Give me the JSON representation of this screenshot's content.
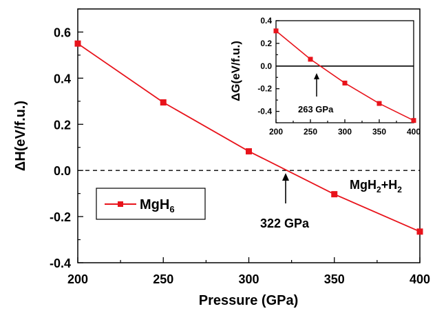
{
  "colors": {
    "series": "#e8131b",
    "axis": "#000000",
    "background": "#ffffff"
  },
  "chart_data": [
    {
      "type": "line",
      "xlabel": "Pressure (GPa)",
      "ylabel": "ΔH(eV/f.u.)",
      "xlim": [
        200,
        400
      ],
      "ylim": [
        -0.4,
        0.7
      ],
      "xticks": [
        "200",
        "250",
        "300",
        "350",
        "400"
      ],
      "yticks": [
        "-0.4",
        "-0.2",
        "0.0",
        "0.2",
        "0.4",
        "0.6"
      ],
      "series": [
        {
          "name": "MgH6",
          "marker": "square",
          "x": [
            200,
            250,
            300,
            350,
            400
          ],
          "y": [
            0.55,
            0.295,
            0.083,
            -0.103,
            -0.265
          ]
        }
      ],
      "reference_line": {
        "y": 0.0,
        "style": "dashed",
        "label": "MgH2+H2"
      },
      "annotation": {
        "text": "322 GPa",
        "x": 322
      },
      "legend": {
        "placement": "center-left",
        "entries": [
          "MgH6"
        ]
      }
    },
    {
      "type": "line",
      "xlabel": "",
      "ylabel": "ΔG(eV/f.u.)",
      "xlim": [
        200,
        400
      ],
      "ylim": [
        -0.5,
        0.4
      ],
      "xticks": [
        "200",
        "250",
        "300",
        "350",
        "400"
      ],
      "yticks": [
        "-0.4",
        "-0.2",
        "0.0",
        "0.2",
        "0.4"
      ],
      "series": [
        {
          "name": "",
          "marker": "square",
          "x": [
            200,
            250,
            300,
            350,
            400
          ],
          "y": [
            0.31,
            0.06,
            -0.15,
            -0.33,
            -0.48
          ]
        }
      ],
      "reference_line": {
        "y": 0.0,
        "style": "solid"
      },
      "annotation": {
        "text": "263 GPa",
        "x": 263
      }
    }
  ],
  "labels": {
    "ref_main": "MgH",
    "ref_sub1": "2",
    "ref_mid": "+H",
    "ref_sub2": "2",
    "legend_main": "MgH",
    "legend_sub": "6"
  }
}
